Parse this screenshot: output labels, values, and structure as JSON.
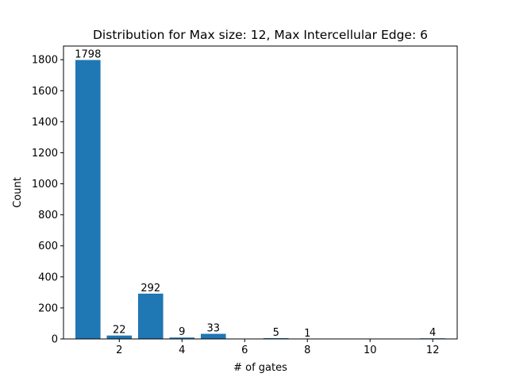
{
  "chart_data": {
    "type": "bar",
    "title": "Distribution for Max size: 12, Max Intercellular Edge: 6",
    "xlabel": "# of gates",
    "ylabel": "Count",
    "x": [
      1,
      2,
      3,
      4,
      5,
      7,
      8,
      12
    ],
    "values": [
      1798,
      22,
      292,
      9,
      33,
      5,
      1,
      4
    ],
    "data_labels": [
      "1798",
      "22",
      "292",
      "9",
      "33",
      "5",
      "1",
      "4"
    ],
    "xlim": [
      0.22,
      12.78
    ],
    "ylim": [
      0,
      1888
    ],
    "xticks": [
      2,
      4,
      6,
      8,
      10,
      12
    ],
    "yticks": [
      0,
      200,
      400,
      600,
      800,
      1000,
      1200,
      1400,
      1600,
      1800
    ],
    "bar_color": "#1f77b4",
    "grid": false,
    "legend": "none"
  }
}
